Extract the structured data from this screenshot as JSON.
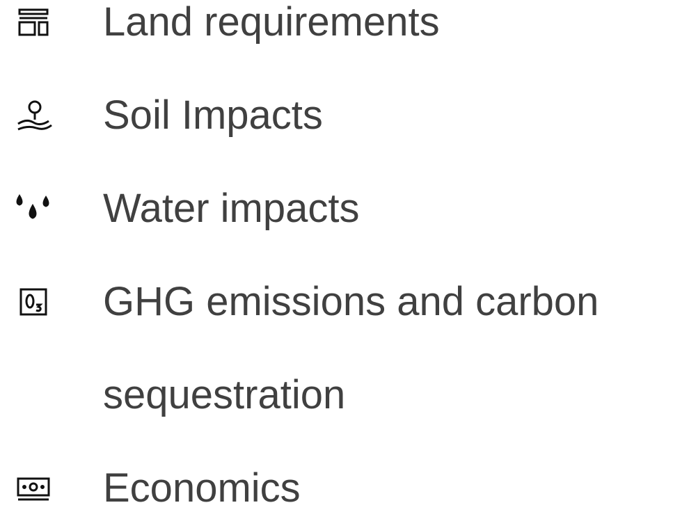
{
  "items": [
    {
      "label": "Land requirements"
    },
    {
      "label": "Soil Impacts"
    },
    {
      "label": "Water impacts"
    },
    {
      "label": "GHG emissions and carbon sequestration"
    },
    {
      "label": "Economics"
    }
  ]
}
